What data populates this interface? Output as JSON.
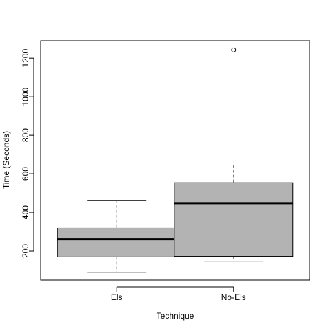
{
  "chart_data": {
    "type": "box",
    "xlabel": "Technique",
    "ylabel": "Time (Seconds)",
    "ylim": [
      50,
      1290
    ],
    "yticks": [
      200,
      400,
      600,
      800,
      1000,
      1200
    ],
    "colors": {
      "box_fill": "#b3b3b3",
      "stroke": "#000000",
      "whisker": "#555555"
    },
    "series": [
      {
        "category": "Els",
        "whisker_low": 90,
        "q1": 170,
        "median": 262,
        "q3": 320,
        "whisker_high": 462,
        "outliers": []
      },
      {
        "category": "No-Els",
        "whisker_low": 148,
        "q1": 173,
        "median": 447,
        "q3": 553,
        "whisker_high": 645,
        "outliers": [
          1242
        ]
      }
    ]
  }
}
